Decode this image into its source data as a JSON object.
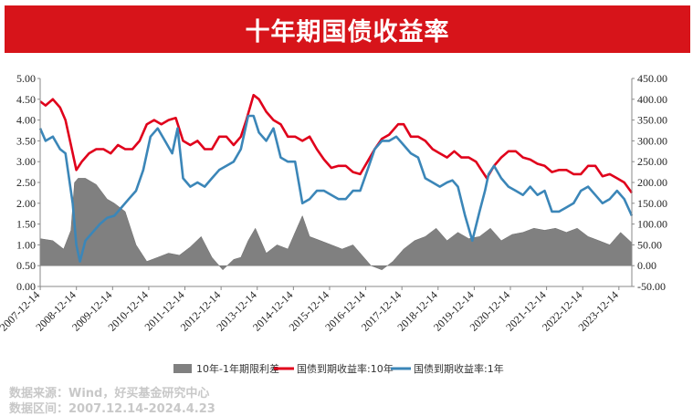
{
  "title": "十年期国债收益率",
  "source_lines": [
    "数据来源：Wind，好买基金研究中心",
    "数据区间：2007.12.14-2024.4.23"
  ],
  "colors": {
    "banner": "#d7141a",
    "spread": "#808080",
    "ten_year": "#e0001b",
    "one_year": "#3b86b8"
  },
  "chart_data": {
    "type": "line",
    "x_ticks": [
      "2007-12-14",
      "2008-12-14",
      "2009-12-14",
      "2010-12-14",
      "2011-12-14",
      "2012-12-14",
      "2013-12-14",
      "2014-12-14",
      "2015-12-14",
      "2016-12-14",
      "2017-12-14",
      "2018-12-14",
      "2019-12-14",
      "2020-12-14",
      "2021-12-14",
      "2022-12-14",
      "2023-12-14"
    ],
    "y_left": {
      "min": 0,
      "max": 5,
      "ticks": [
        "0.00",
        "0.50",
        "1.00",
        "1.50",
        "2.00",
        "2.50",
        "3.00",
        "3.50",
        "4.00",
        "4.50",
        "5.00"
      ]
    },
    "y_right": {
      "min": -50,
      "max": 450,
      "ticks": [
        "-50.00",
        "0.00",
        "50.00",
        "100.00",
        "150.00",
        "200.00",
        "250.00",
        "300.00",
        "350.00",
        "400.00",
        "450.00"
      ]
    },
    "series": [
      {
        "name": "10年-1年期限利差",
        "type": "area",
        "axis": "right",
        "x": [
          2007.95,
          2008.3,
          2008.6,
          2008.8,
          2008.9,
          2009.0,
          2009.2,
          2009.5,
          2009.8,
          2010.0,
          2010.3,
          2010.6,
          2010.9,
          2011.2,
          2011.5,
          2011.8,
          2012.1,
          2012.4,
          2012.7,
          2013.0,
          2013.3,
          2013.5,
          2013.7,
          2013.9,
          2014.2,
          2014.5,
          2014.8,
          2015.0,
          2015.2,
          2015.4,
          2015.7,
          2016.0,
          2016.3,
          2016.6,
          2016.9,
          2017.1,
          2017.4,
          2017.7,
          2018.0,
          2018.3,
          2018.6,
          2018.9,
          2019.2,
          2019.5,
          2019.8,
          2020.1,
          2020.4,
          2020.7,
          2021.0,
          2021.3,
          2021.6,
          2021.9,
          2022.2,
          2022.5,
          2022.8,
          2023.1,
          2023.4,
          2023.7,
          2024.0,
          2024.31
        ],
        "values": [
          65,
          60,
          40,
          85,
          200,
          210,
          210,
          195,
          160,
          150,
          130,
          50,
          10,
          20,
          30,
          25,
          45,
          70,
          20,
          -10,
          15,
          20,
          60,
          90,
          30,
          50,
          40,
          80,
          120,
          70,
          60,
          50,
          40,
          50,
          20,
          0,
          -10,
          10,
          40,
          60,
          70,
          90,
          60,
          80,
          65,
          70,
          90,
          60,
          75,
          80,
          90,
          85,
          90,
          80,
          90,
          70,
          60,
          50,
          80,
          55
        ]
      },
      {
        "name": "国债到期收益率:10年",
        "axis": "left",
        "x": [
          2007.95,
          2008.1,
          2008.3,
          2008.5,
          2008.65,
          2008.8,
          2008.95,
          2009.1,
          2009.3,
          2009.5,
          2009.7,
          2009.9,
          2010.1,
          2010.3,
          2010.5,
          2010.7,
          2010.9,
          2011.1,
          2011.3,
          2011.5,
          2011.7,
          2011.9,
          2012.1,
          2012.3,
          2012.5,
          2012.7,
          2012.9,
          2013.1,
          2013.3,
          2013.5,
          2013.65,
          2013.85,
          2014.0,
          2014.2,
          2014.4,
          2014.6,
          2014.8,
          2015.0,
          2015.2,
          2015.4,
          2015.6,
          2015.8,
          2016.0,
          2016.2,
          2016.4,
          2016.6,
          2016.8,
          2017.0,
          2017.2,
          2017.4,
          2017.6,
          2017.85,
          2018.0,
          2018.2,
          2018.4,
          2018.6,
          2018.8,
          2019.0,
          2019.2,
          2019.4,
          2019.6,
          2019.8,
          2020.0,
          2020.15,
          2020.3,
          2020.5,
          2020.7,
          2020.9,
          2021.1,
          2021.3,
          2021.5,
          2021.7,
          2021.9,
          2022.1,
          2022.3,
          2022.5,
          2022.7,
          2022.9,
          2023.1,
          2023.3,
          2023.5,
          2023.7,
          2023.9,
          2024.1,
          2024.31
        ],
        "values": [
          4.45,
          4.35,
          4.5,
          4.3,
          4.0,
          3.4,
          2.8,
          3.0,
          3.2,
          3.3,
          3.3,
          3.2,
          3.4,
          3.3,
          3.3,
          3.5,
          3.9,
          4.0,
          3.9,
          4.0,
          4.05,
          3.5,
          3.4,
          3.5,
          3.3,
          3.3,
          3.6,
          3.6,
          3.4,
          3.6,
          4.0,
          4.6,
          4.5,
          4.2,
          4.0,
          3.9,
          3.6,
          3.6,
          3.5,
          3.6,
          3.3,
          3.05,
          2.85,
          2.9,
          2.9,
          2.75,
          2.7,
          3.0,
          3.3,
          3.55,
          3.65,
          3.9,
          3.9,
          3.6,
          3.6,
          3.5,
          3.3,
          3.2,
          3.1,
          3.25,
          3.1,
          3.1,
          3.0,
          2.8,
          2.6,
          2.9,
          3.1,
          3.25,
          3.25,
          3.1,
          3.05,
          2.95,
          2.9,
          2.75,
          2.8,
          2.8,
          2.7,
          2.7,
          2.9,
          2.9,
          2.65,
          2.7,
          2.6,
          2.5,
          2.25
        ]
      },
      {
        "name": "国债到期收益率:1年",
        "axis": "left",
        "x": [
          2007.95,
          2008.1,
          2008.3,
          2008.5,
          2008.65,
          2008.85,
          2008.95,
          2009.05,
          2009.2,
          2009.4,
          2009.6,
          2009.8,
          2010.0,
          2010.2,
          2010.4,
          2010.6,
          2010.8,
          2011.0,
          2011.2,
          2011.4,
          2011.6,
          2011.75,
          2011.9,
          2012.1,
          2012.3,
          2012.5,
          2012.7,
          2012.9,
          2013.1,
          2013.3,
          2013.5,
          2013.7,
          2013.85,
          2014.0,
          2014.2,
          2014.4,
          2014.6,
          2014.8,
          2015.0,
          2015.2,
          2015.4,
          2015.6,
          2015.8,
          2016.0,
          2016.2,
          2016.4,
          2016.6,
          2016.8,
          2017.0,
          2017.2,
          2017.4,
          2017.6,
          2017.8,
          2018.0,
          2018.2,
          2018.4,
          2018.6,
          2018.8,
          2019.0,
          2019.2,
          2019.35,
          2019.5,
          2019.7,
          2019.9,
          2020.1,
          2020.25,
          2020.35,
          2020.5,
          2020.7,
          2020.9,
          2021.1,
          2021.3,
          2021.5,
          2021.7,
          2021.9,
          2022.1,
          2022.3,
          2022.5,
          2022.7,
          2022.9,
          2023.1,
          2023.3,
          2023.5,
          2023.7,
          2023.9,
          2024.1,
          2024.31
        ],
        "values": [
          3.8,
          3.5,
          3.6,
          3.3,
          3.2,
          2.0,
          1.0,
          0.6,
          1.1,
          1.3,
          1.5,
          1.65,
          1.7,
          1.9,
          2.1,
          2.3,
          2.8,
          3.6,
          3.8,
          3.5,
          3.2,
          3.8,
          2.6,
          2.4,
          2.5,
          2.4,
          2.6,
          2.8,
          2.9,
          3.0,
          3.3,
          4.1,
          4.1,
          3.7,
          3.5,
          3.8,
          3.1,
          3.0,
          3.0,
          2.0,
          2.1,
          2.3,
          2.3,
          2.2,
          2.1,
          2.1,
          2.3,
          2.3,
          2.8,
          3.3,
          3.5,
          3.5,
          3.6,
          3.4,
          3.2,
          3.1,
          2.6,
          2.5,
          2.4,
          2.5,
          2.55,
          2.4,
          1.7,
          1.1,
          1.8,
          2.3,
          2.7,
          2.9,
          2.6,
          2.4,
          2.3,
          2.2,
          2.4,
          2.2,
          2.3,
          1.8,
          1.8,
          1.9,
          2.0,
          2.3,
          2.4,
          2.2,
          2.0,
          2.1,
          2.3,
          2.1,
          1.7
        ]
      }
    ],
    "legend": [
      "10年-1年期限利差",
      "国债到期收益率:10年",
      "国债到期收益率:1年"
    ],
    "legend_position": "bottom"
  }
}
